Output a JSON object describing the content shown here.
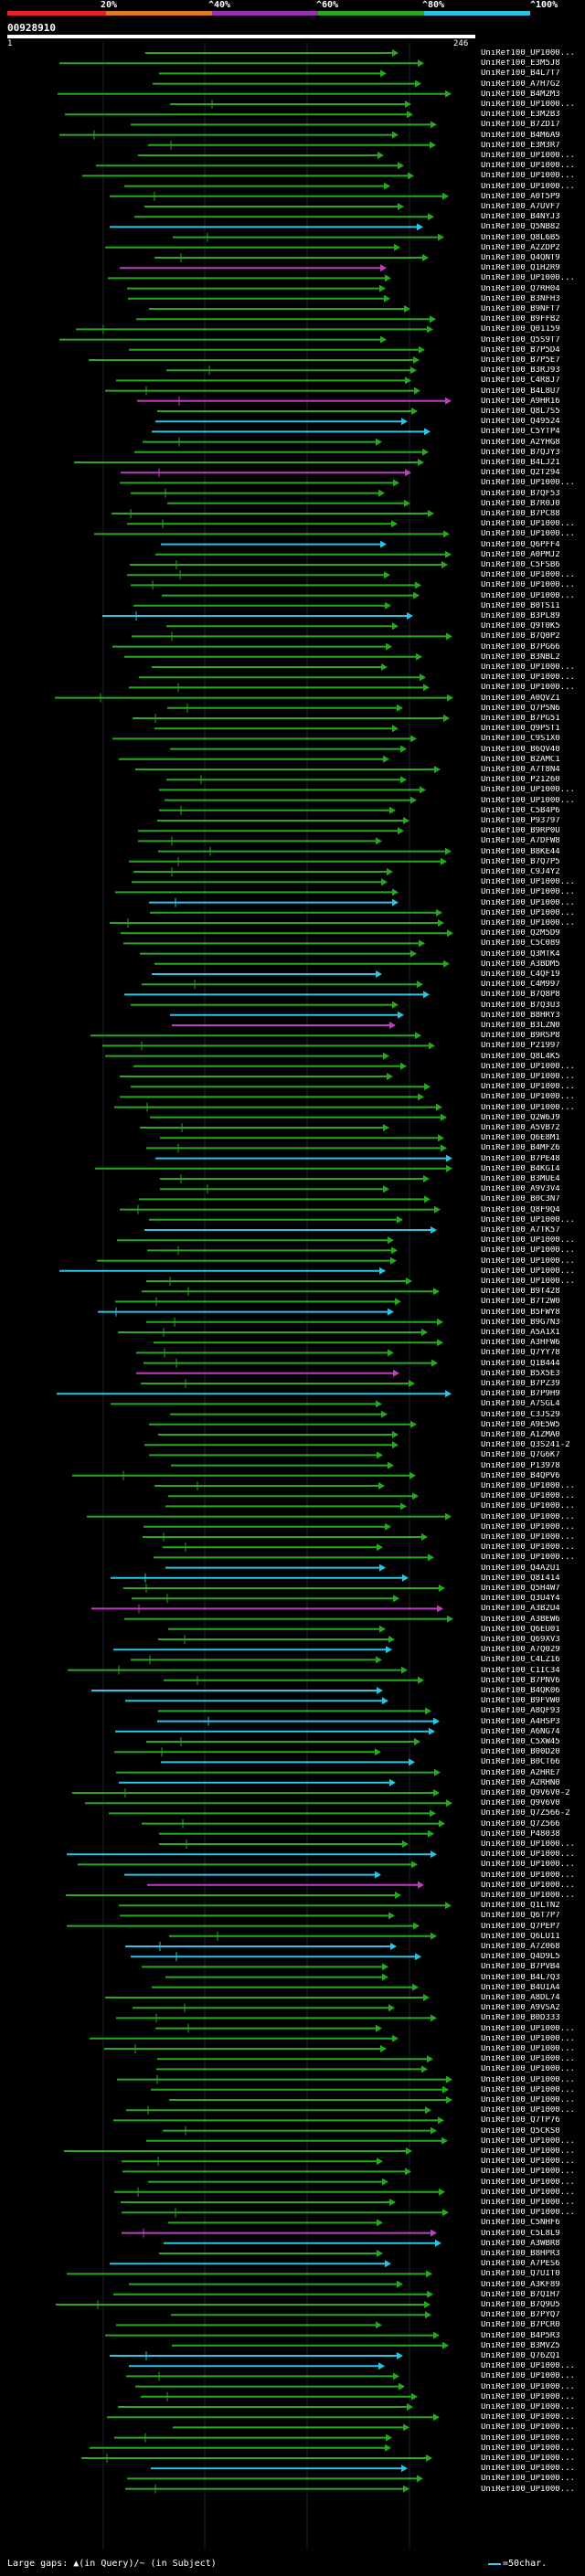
{
  "legend": {
    "segments": [
      {
        "label": "20%",
        "color": "#e8202a"
      },
      {
        "label": "^40%",
        "color": "#e07a1e"
      },
      {
        "label": "^60%",
        "color": "#9b2fb0"
      },
      {
        "label": "^80%",
        "color": "#26a81f"
      },
      {
        "label": "^100%",
        "color": "#2bc4e6"
      }
    ]
  },
  "query": {
    "id": "00928910",
    "start": "1",
    "end": "246"
  },
  "hits": [
    "UniRef100_UP1000...",
    "UniRef100_E3M5J8",
    "UniRef100_B4L7T7",
    "UniRef100_A7H7G2",
    "UniRef100_B4M2M3",
    "UniRef100_UP1000...",
    "UniRef100_E3M2B3",
    "UniRef100_B7ZD17",
    "UniRef100_B4M6A9",
    "UniRef100_E3M3R7",
    "UniRef100_UP1000...",
    "UniRef100_UP1000...",
    "UniRef100_UP1000...",
    "UniRef100_UP1000...",
    "UniRef100_A0T5P9",
    "UniRef100_A7UVF7",
    "UniRef100_B4NYJ3",
    "UniRef100_Q5NB82",
    "UniRef100_Q8L6B5",
    "UniRef100_A2ZDP2",
    "UniRef100_Q4QNT9",
    "UniRef100_Q1H2R9",
    "UniRef100_UP1000...",
    "UniRef100_Q7RH04",
    "UniRef100_B3NFH3",
    "UniRef100_B9NFT7",
    "UniRef100_B9FFB2",
    "UniRef100_Q01159",
    "UniRef100_Q5S9T7",
    "UniRef100_B7P5D4",
    "UniRef100_B7P5E7",
    "UniRef100_B3RJ93",
    "UniRef100_C4R8J7",
    "UniRef100_B4L8U7",
    "UniRef100_A9HR16",
    "UniRef100_Q8L7S5",
    "UniRef100_Q49524",
    "UniRef100_C5YTP4",
    "UniRef100_A2YHG8",
    "UniRef100_B7QJY3",
    "UniRef100_B4LJ21",
    "UniRef100_Q2T294",
    "UniRef100_UP1000...",
    "UniRef100_B7QF53",
    "UniRef100_B7R0J0",
    "UniRef100_B7PC88",
    "UniRef100_UP1000...",
    "UniRef100_UP1000...",
    "UniRef100_Q6PFF4",
    "UniRef100_A0PMJ2",
    "UniRef100_C5FSB6",
    "UniRef100_UP1000...",
    "UniRef100_UP1000...",
    "UniRef100_UP1000...",
    "UniRef100_B0TS11",
    "UniRef100_B3PL89",
    "UniRef100_Q9T0K5",
    "UniRef100_B7Q0P2",
    "UniRef100_B7PG66",
    "UniRef100_B3NBL2",
    "UniRef100_UP1000...",
    "UniRef100_UP1000...",
    "UniRef100_UP1000...",
    "UniRef100_A0QVZ1",
    "UniRef100_Q7PSN6",
    "UniRef100_B7PG51",
    "UniRef100_Q9PST1",
    "UniRef100_C9S1X0",
    "UniRef100_B6QV40",
    "UniRef100_B2AMC1",
    "UniRef100_A7T8N4",
    "UniRef100_P21260",
    "UniRef100_UP1000...",
    "UniRef100_UP1000...",
    "UniRef100_C5B4P6",
    "UniRef100_P93797",
    "UniRef100_B9RP0U",
    "UniRef100_A7DFW8",
    "UniRef100_B8KE44",
    "UniRef100_B7Q7P5",
    "UniRef100_C9J4Y2",
    "UniRef100_UP1000...",
    "UniRef100_UP1000...",
    "UniRef100_UP1000...",
    "UniRef100_UP1000...",
    "UniRef100_UP1000...",
    "UniRef100_Q2M5D9",
    "UniRef100_C5C089",
    "UniRef100_Q3MTK4",
    "UniRef100_A3BDM5",
    "UniRef100_C4QF19",
    "UniRef100_C4M997",
    "UniRef100_B7Q8P8",
    "UniRef100_B7Q3U3",
    "UniRef100_B8HRY3",
    "UniRef100_B3LZN0",
    "UniRef100_B9RSP8",
    "UniRef100_P21997",
    "UniRef100_Q8L4K5",
    "UniRef100_UP1000...",
    "UniRef100_UP1000...",
    "UniRef100_UP1000...",
    "UniRef100_UP1000...",
    "UniRef100_UP1000...",
    "UniRef100_Q2W6J9",
    "UniRef100_A5VB72",
    "UniRef100_Q6E8M1",
    "UniRef100_B4MFZ6",
    "UniRef100_B7PE48",
    "UniRef100_B4KGI4",
    "UniRef100_B3MUE4",
    "UniRef100_A9V3V4",
    "UniRef100_B0C3N7",
    "UniRef100_Q8F9Q4",
    "UniRef100_UP1000...",
    "UniRef100_A7TK57",
    "UniRef100_UP1000...",
    "UniRef100_UP1000...",
    "UniRef100_UP1000...",
    "UniRef100_UP1000...",
    "UniRef100_UP1000...",
    "UniRef100_B9T428",
    "UniRef100_B7T2W0",
    "UniRef100_B5FWY8",
    "UniRef100_B9G7N3",
    "UniRef100_A5A1X1",
    "UniRef100_A3HFW6",
    "UniRef100_Q7YY78",
    "UniRef100_Q1B444",
    "UniRef100_B5X5E3",
    "UniRef100_B7PZ39",
    "UniRef100_B7P9H9",
    "UniRef100_A7SGL4",
    "UniRef100_C3JS29",
    "UniRef100_A9E5W5",
    "UniRef100_A1ZMA0",
    "UniRef100_Q3S241-2",
    "UniRef100_Q7G6K7",
    "UniRef100_P13978",
    "UniRef100_B4QPV6",
    "UniRef100_UP1000...",
    "UniRef100_UP1000...",
    "UniRef100_UP1000...",
    "UniRef100_UP1000...",
    "UniRef100_UP1000...",
    "UniRef100_UP1000...",
    "UniRef100_UP1000...",
    "UniRef100_UP1000...",
    "UniRef100_Q4A2U1",
    "UniRef100_Q8I414",
    "UniRef100_Q5H4W7",
    "UniRef100_Q3U4Y4",
    "UniRef100_A3B2U4",
    "UniRef100_A3BEW6",
    "UniRef100_Q6EU01",
    "UniRef100_Q69XV3",
    "UniRef100_A7Q029",
    "UniRef100_C4LZ16",
    "UniRef100_C1IC34",
    "UniRef100_B7PNV6",
    "UniRef100_B4QK06",
    "UniRef100_B9FVW0",
    "UniRef100_A8QF93",
    "UniRef100_A4HSP3",
    "UniRef100_A6NG74",
    "UniRef100_C5XW45",
    "UniRef100_B00D20",
    "UniRef100_B0CT66",
    "UniRef100_A2HRE7",
    "UniRef100_A2RHN0",
    "UniRef100_Q9V6V0-2",
    "UniRef100_Q9V6V0",
    "UniRef100_Q7Z566-2",
    "UniRef100_Q7Z566",
    "UniRef100_P48038",
    "UniRef100_UP1000...",
    "UniRef100_UP1000...",
    "UniRef100_UP1000...",
    "UniRef100_UP1000...",
    "UniRef100_UP1000...",
    "UniRef100_UP1000...",
    "UniRef100_Q1LTN2",
    "UniRef100_Q6T7P7",
    "UniRef100_Q7PEP7",
    "UniRef100_Q6LU11",
    "UniRef100_A7Z068",
    "UniRef100_Q4D9L5",
    "UniRef100_B7PVB4",
    "UniRef100_B4L7Q3",
    "UniRef100_B4UIA4",
    "UniRef100_A8DL74",
    "UniRef100_A9VSA2",
    "UniRef100_B0D333",
    "UniRef100_UP1000...",
    "UniRef100_UP1000...",
    "UniRef100_UP1000...",
    "UniRef100_UP1000...",
    "UniRef100_UP1000...",
    "UniRef100_UP1000...",
    "UniRef100_UP1000...",
    "UniRef100_UP1000...",
    "UniRef100_UP1000...",
    "UniRef100_Q7TP76",
    "UniRef100_Q5CKS0",
    "UniRef100_UP1000...",
    "UniRef100_UP1000...",
    "UniRef100_UP1000...",
    "UniRef100_UP1000...",
    "UniRef100_UP1000...",
    "UniRef100_UP1000...",
    "UniRef100_UP1000...",
    "UniRef100_UP1000...",
    "UniRef100_C5NHF6",
    "UniRef100_C5L8L9",
    "UniRef100_A3WBR8",
    "UniRef100_B8HPR3",
    "UniRef100_A7PES6",
    "UniRef100_Q7UIT0",
    "UniRef100_A3KF89",
    "UniRef100_B7QIH7",
    "UniRef100_B7Q9U5",
    "UniRef100_B7PYQ7",
    "UniRef100_B7PCR0",
    "UniRef100_B4P5R3",
    "UniRef100_B3MVZ5",
    "UniRef100_Q76ZQ1",
    "UniRef100_UP1000...",
    "UniRef100_UP1000...",
    "UniRef100_UP1000...",
    "UniRef100_UP1000...",
    "UniRef100_UP1000...",
    "UniRef100_UP1000...",
    "UniRef100_UP1000...",
    "UniRef100_UP1000...",
    "UniRef100_UP1000...",
    "UniRef100_UP1000...",
    "UniRef100_UP1000...",
    "UniRef100_UP1000...",
    "UniRef100_UP1000..."
  ],
  "footer": {
    "large_gaps": "Large gaps: ▲(in Query)/~ (in Subject)",
    "scale": "=50char."
  }
}
